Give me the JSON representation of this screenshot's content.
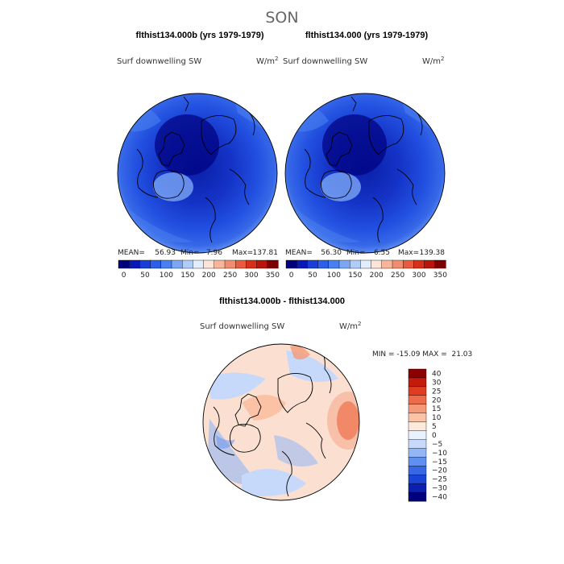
{
  "chart_data": {
    "type": "heatmap",
    "title": "SON",
    "colors": {
      "abs": [
        "#00007f",
        "#0b18b8",
        "#1a3fd9",
        "#2b5fe8",
        "#4a7ff0",
        "#7aa6f5",
        "#b0ccf8",
        "#e4edfd",
        "#fde4d6",
        "#f9b59a",
        "#f28c6e",
        "#e85b3e",
        "#d53018",
        "#b8160c",
        "#7f0000"
      ],
      "diff": [
        "#00007f",
        "#0b1fb0",
        "#1a44d6",
        "#3668e6",
        "#6090ef",
        "#93b6f5",
        "#c6d9fa",
        "#eaf1fe",
        "#fde8dc",
        "#fbc2a6",
        "#f59a78",
        "#ec6b4a",
        "#df3d22",
        "#c41a0b",
        "#8b0000"
      ]
    },
    "panels": [
      {
        "id": "left",
        "title": "flthist134.000b (yrs 1979-1979)",
        "variable": "Surf downwelling SW",
        "units": "W/m",
        "units_sup": "2",
        "mean_label": "MEAN=",
        "mean": "56.93",
        "min_label": "Min=",
        "min": "7.96",
        "max_label": "Max=",
        "max": "137.81",
        "tick_labels": [
          "0",
          "50",
          "100",
          "150",
          "200",
          "250",
          "300",
          "350"
        ]
      },
      {
        "id": "right",
        "title": "flthist134.000 (yrs 1979-1979)",
        "variable": "Surf downwelling SW",
        "units": "W/m",
        "units_sup": "2",
        "mean_label": "MEAN=",
        "mean": "56.30",
        "min_label": "Min=",
        "min": "6.55",
        "max_label": "Max=",
        "max": "139.38",
        "tick_labels": [
          "0",
          "50",
          "100",
          "150",
          "200",
          "250",
          "300",
          "350"
        ]
      }
    ],
    "diff_panel": {
      "title": "flthist134.000b - flthist134.000",
      "variable": "Surf downwelling SW",
      "units": "W/m",
      "units_sup": "2",
      "stats": "MIN = -15.09 MAX =  21.03",
      "tick_labels": [
        "40",
        "30",
        "25",
        "20",
        "15",
        "10",
        "5",
        "0",
        "−5",
        "−10",
        "−15",
        "−20",
        "−25",
        "−30",
        "−40"
      ]
    }
  }
}
